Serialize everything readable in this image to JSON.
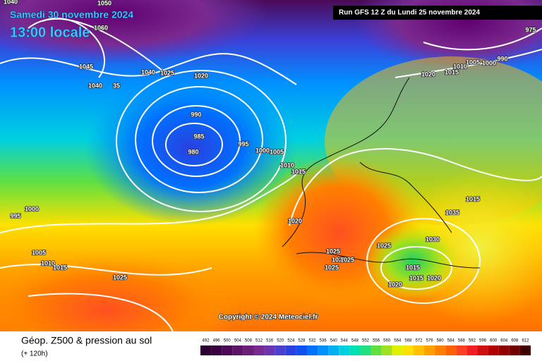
{
  "header": {
    "date": "Samedi 30 novembre 2024",
    "time": "13:00 locale",
    "run": "Run GFS 12 Z du Lundi 25 novembre 2024"
  },
  "copyright": "Copyright © 2024 Meteociel.fr",
  "footer": {
    "title": "Géop. Z500 & pression au sol",
    "subtitle": "(+ 120h)"
  },
  "legend": {
    "values": [
      492,
      496,
      500,
      504,
      508,
      512,
      516,
      520,
      524,
      528,
      532,
      536,
      540,
      544,
      548,
      552,
      556,
      560,
      564,
      568,
      572,
      576,
      580,
      584,
      588,
      592,
      596,
      600,
      604,
      608,
      612
    ],
    "colors": [
      "#2a0030",
      "#3a0040",
      "#4b0a55",
      "#5a1468",
      "#6a1e7a",
      "#7a2a8e",
      "#6a35b0",
      "#4a3fd0",
      "#2a40e0",
      "#1050f0",
      "#0070ff",
      "#0090ff",
      "#00b0f0",
      "#00d0e0",
      "#00e0b0",
      "#20e080",
      "#60e040",
      "#a0e020",
      "#e0f000",
      "#ffe000",
      "#ffc000",
      "#ffa000",
      "#ff8000",
      "#ff6000",
      "#ff4020",
      "#f02020",
      "#d01010",
      "#b00000",
      "#900000",
      "#700000",
      "#400000"
    ]
  },
  "isobar_labels": [
    "1040",
    "1050",
    "1060",
    "1045",
    "1040",
    "1025",
    "1020",
    "1040",
    "35",
    "990",
    "985",
    "980",
    "995",
    "1000",
    "1005",
    "1010",
    "1015",
    "1020",
    "1020",
    "1015",
    "1010",
    "1005",
    "1000",
    "990",
    "975",
    "1000",
    "995",
    "1005",
    "1010",
    "1015",
    "1025",
    "1025",
    "1025",
    "1025",
    "1025",
    "1025",
    "1030",
    "1035",
    "1015",
    "1015",
    "1015",
    "1020",
    "1020"
  ]
}
